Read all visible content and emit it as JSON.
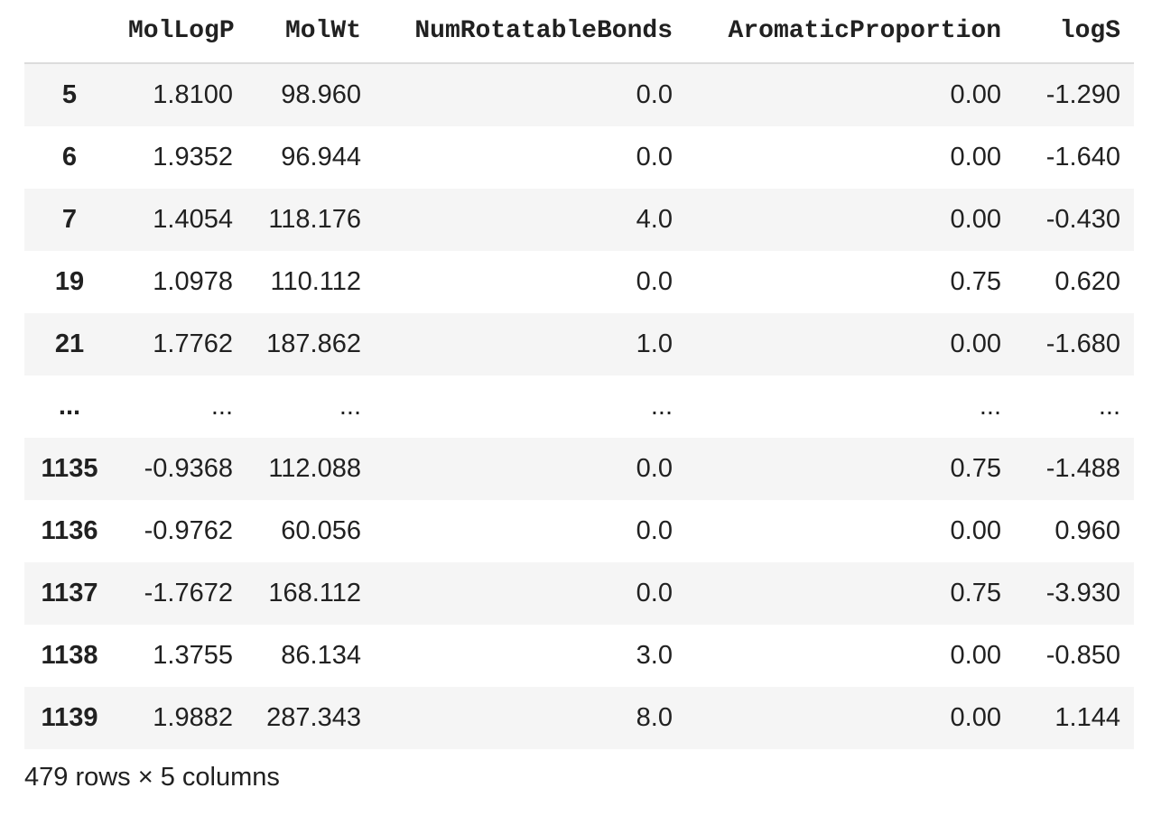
{
  "table": {
    "index_header": "",
    "columns": [
      "MolLogP",
      "MolWt",
      "NumRotatableBonds",
      "AromaticProportion",
      "logS"
    ],
    "rows": [
      {
        "index": "5",
        "cells": [
          "1.8100",
          "98.960",
          "0.0",
          "0.00",
          "-1.290"
        ]
      },
      {
        "index": "6",
        "cells": [
          "1.9352",
          "96.944",
          "0.0",
          "0.00",
          "-1.640"
        ]
      },
      {
        "index": "7",
        "cells": [
          "1.4054",
          "118.176",
          "4.0",
          "0.00",
          "-0.430"
        ]
      },
      {
        "index": "19",
        "cells": [
          "1.0978",
          "110.112",
          "0.0",
          "0.75",
          "0.620"
        ]
      },
      {
        "index": "21",
        "cells": [
          "1.7762",
          "187.862",
          "1.0",
          "0.00",
          "-1.680"
        ]
      },
      {
        "index": "...",
        "cells": [
          "...",
          "...",
          "...",
          "...",
          "..."
        ]
      },
      {
        "index": "1135",
        "cells": [
          "-0.9368",
          "112.088",
          "0.0",
          "0.75",
          "-1.488"
        ]
      },
      {
        "index": "1136",
        "cells": [
          "-0.9762",
          "60.056",
          "0.0",
          "0.00",
          "0.960"
        ]
      },
      {
        "index": "1137",
        "cells": [
          "-1.7672",
          "168.112",
          "0.0",
          "0.75",
          "-3.930"
        ]
      },
      {
        "index": "1138",
        "cells": [
          "1.3755",
          "86.134",
          "3.0",
          "0.00",
          "-0.850"
        ]
      },
      {
        "index": "1139",
        "cells": [
          "1.9882",
          "287.343",
          "8.0",
          "0.00",
          "1.144"
        ]
      }
    ]
  },
  "shape_text": "479 rows × 5 columns",
  "colors": {
    "stripe": "#f5f5f5",
    "text": "#212121",
    "header_rule": "#dcdcdc"
  }
}
